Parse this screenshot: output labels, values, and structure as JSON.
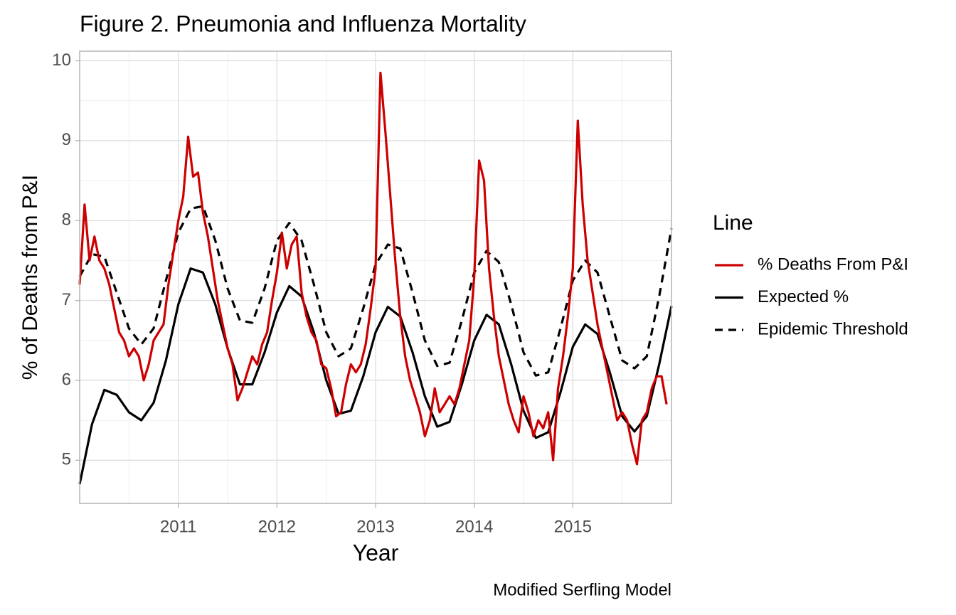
{
  "chart_data": {
    "type": "line",
    "title": "Figure 2. Pneumonia and Influenza Mortality",
    "x_label": "Year",
    "y_label": "% of Deaths from P&I",
    "caption": "Modified Serfling Model",
    "legend_title": "Line",
    "legend": "right",
    "grid": true,
    "xlim": [
      2010.0,
      2016.0
    ],
    "ylim": [
      4.46,
      10.12
    ],
    "xticks": [
      2011,
      2012,
      2013,
      2014,
      2015
    ],
    "yticks": [
      5,
      6,
      7,
      8,
      9,
      10
    ],
    "x_minor_ticks": [
      2010.5,
      2011.5,
      2012.5,
      2013.5,
      2014.5,
      2015.5
    ],
    "y_minor_ticks": [
      5.5,
      6.5,
      7.5,
      8.5,
      9.5
    ],
    "series": [
      {
        "name": "% Deaths From P&I",
        "color": "#cc0000",
        "dash": false,
        "x": [
          2010.0,
          2010.05,
          2010.1,
          2010.15,
          2010.2,
          2010.25,
          2010.3,
          2010.35,
          2010.4,
          2010.45,
          2010.5,
          2010.55,
          2010.6,
          2010.65,
          2010.7,
          2010.75,
          2010.8,
          2010.85,
          2010.9,
          2010.95,
          2011.0,
          2011.05,
          2011.1,
          2011.15,
          2011.2,
          2011.25,
          2011.3,
          2011.35,
          2011.4,
          2011.45,
          2011.5,
          2011.55,
          2011.6,
          2011.65,
          2011.7,
          2011.75,
          2011.8,
          2011.85,
          2011.9,
          2011.95,
          2012.0,
          2012.05,
          2012.1,
          2012.15,
          2012.2,
          2012.25,
          2012.3,
          2012.35,
          2012.4,
          2012.45,
          2012.5,
          2012.55,
          2012.6,
          2012.65,
          2012.7,
          2012.75,
          2012.8,
          2012.85,
          2012.9,
          2012.95,
          2013.0,
          2013.05,
          2013.1,
          2013.15,
          2013.2,
          2013.25,
          2013.3,
          2013.35,
          2013.4,
          2013.45,
          2013.5,
          2013.55,
          2013.6,
          2013.65,
          2013.7,
          2013.75,
          2013.8,
          2013.85,
          2013.9,
          2013.95,
          2014.0,
          2014.05,
          2014.1,
          2014.15,
          2014.2,
          2014.25,
          2014.3,
          2014.35,
          2014.4,
          2014.45,
          2014.5,
          2014.55,
          2014.6,
          2014.65,
          2014.7,
          2014.75,
          2014.8,
          2014.85,
          2014.9,
          2014.95,
          2015.0,
          2015.05,
          2015.1,
          2015.15,
          2015.2,
          2015.25,
          2015.3,
          2015.35,
          2015.4,
          2015.45,
          2015.5,
          2015.55,
          2015.6,
          2015.65,
          2015.7,
          2015.75,
          2015.8,
          2015.85,
          2015.9,
          2015.95
        ],
        "values": [
          7.2,
          8.2,
          7.5,
          7.8,
          7.5,
          7.4,
          7.2,
          6.9,
          6.6,
          6.5,
          6.3,
          6.4,
          6.3,
          6.0,
          6.2,
          6.5,
          6.6,
          6.7,
          7.2,
          7.6,
          8.0,
          8.3,
          9.05,
          8.55,
          8.6,
          8.1,
          7.8,
          7.4,
          7.0,
          6.7,
          6.4,
          6.2,
          5.75,
          5.9,
          6.1,
          6.3,
          6.2,
          6.45,
          6.6,
          7.0,
          7.35,
          7.85,
          7.4,
          7.7,
          7.8,
          7.1,
          6.8,
          6.6,
          6.5,
          6.2,
          6.15,
          5.9,
          5.55,
          5.6,
          5.95,
          6.2,
          6.1,
          6.2,
          6.45,
          6.9,
          7.4,
          9.85,
          9.1,
          8.3,
          7.5,
          6.8,
          6.3,
          6.0,
          5.8,
          5.6,
          5.3,
          5.5,
          5.9,
          5.6,
          5.7,
          5.8,
          5.7,
          5.9,
          6.2,
          6.5,
          7.3,
          8.75,
          8.5,
          7.4,
          6.8,
          6.3,
          6.0,
          5.7,
          5.5,
          5.35,
          5.8,
          5.6,
          5.3,
          5.5,
          5.4,
          5.6,
          5.0,
          5.9,
          6.3,
          6.8,
          7.4,
          9.25,
          8.2,
          7.5,
          7.1,
          6.7,
          6.4,
          6.1,
          5.8,
          5.5,
          5.6,
          5.5,
          5.2,
          4.95,
          5.5,
          5.6,
          5.9,
          6.05,
          6.05,
          5.7
        ]
      },
      {
        "name": "Expected %",
        "color": "#000000",
        "dash": false,
        "x": [
          2010.0,
          2010.125,
          2010.25,
          2010.375,
          2010.5,
          2010.625,
          2010.75,
          2010.875,
          2011.0,
          2011.125,
          2011.25,
          2011.375,
          2011.5,
          2011.625,
          2011.75,
          2011.875,
          2012.0,
          2012.125,
          2012.25,
          2012.375,
          2012.5,
          2012.625,
          2012.75,
          2012.875,
          2013.0,
          2013.125,
          2013.25,
          2013.375,
          2013.5,
          2013.625,
          2013.75,
          2013.875,
          2014.0,
          2014.125,
          2014.25,
          2014.375,
          2014.5,
          2014.625,
          2014.75,
          2014.875,
          2015.0,
          2015.125,
          2015.25,
          2015.375,
          2015.5,
          2015.625,
          2015.75,
          2015.875,
          2016.0
        ],
        "values": [
          4.7,
          5.45,
          5.88,
          5.82,
          5.6,
          5.5,
          5.72,
          6.25,
          6.95,
          7.4,
          7.35,
          6.95,
          6.4,
          5.95,
          5.95,
          6.35,
          6.85,
          7.18,
          7.05,
          6.6,
          6.0,
          5.58,
          5.62,
          6.05,
          6.6,
          6.92,
          6.8,
          6.35,
          5.8,
          5.42,
          5.48,
          5.95,
          6.5,
          6.82,
          6.7,
          6.2,
          5.62,
          5.28,
          5.35,
          5.85,
          6.42,
          6.7,
          6.58,
          6.1,
          5.55,
          5.36,
          5.55,
          6.2,
          6.93
        ]
      },
      {
        "name": "Epidemic Threshold",
        "color": "#000000",
        "dash": true,
        "x": [
          2010.0,
          2010.125,
          2010.25,
          2010.375,
          2010.5,
          2010.625,
          2010.75,
          2010.875,
          2011.0,
          2011.125,
          2011.25,
          2011.375,
          2011.5,
          2011.625,
          2011.75,
          2011.875,
          2012.0,
          2012.125,
          2012.25,
          2012.375,
          2012.5,
          2012.625,
          2012.75,
          2012.875,
          2013.0,
          2013.125,
          2013.25,
          2013.375,
          2013.5,
          2013.625,
          2013.75,
          2013.875,
          2014.0,
          2014.125,
          2014.25,
          2014.375,
          2014.5,
          2014.625,
          2014.75,
          2014.875,
          2015.0,
          2015.125,
          2015.25,
          2015.375,
          2015.5,
          2015.625,
          2015.75,
          2015.875,
          2016.0
        ],
        "values": [
          7.3,
          7.58,
          7.55,
          7.1,
          6.65,
          6.45,
          6.65,
          7.25,
          7.85,
          8.15,
          8.18,
          7.75,
          7.15,
          6.75,
          6.72,
          7.15,
          7.75,
          7.97,
          7.75,
          7.2,
          6.6,
          6.3,
          6.4,
          6.9,
          7.45,
          7.7,
          7.65,
          7.1,
          6.5,
          6.18,
          6.22,
          6.75,
          7.35,
          7.62,
          7.48,
          6.95,
          6.35,
          6.06,
          6.1,
          6.65,
          7.25,
          7.5,
          7.35,
          6.8,
          6.25,
          6.15,
          6.3,
          7.05,
          7.9
        ]
      }
    ]
  }
}
